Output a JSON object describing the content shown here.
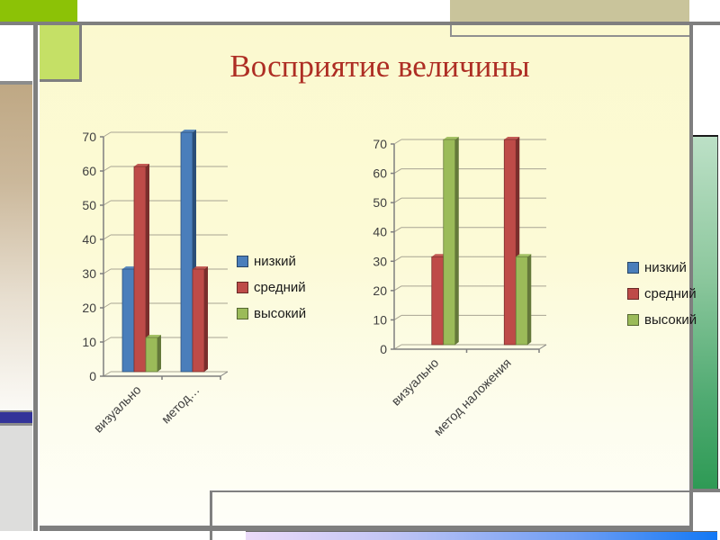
{
  "slide": {
    "title": "Восприятие величины"
  },
  "theme": {
    "title_color": "#AE2E24",
    "slide_bg": "#FBF9CF",
    "accent_green": "#8CC206",
    "accent_light_green": "#C5E066",
    "accent_tan": "#C9C49B",
    "accent_navy": "#333399",
    "frame_gray": "#7F7F7F",
    "right_green_gradient": [
      "#BCE0C6",
      "#2E9A55"
    ],
    "bottom_bar_gradient": [
      "#EBDAF9",
      "#1278F5"
    ]
  },
  "chart_data": [
    {
      "type": "bar",
      "title": "",
      "xlabel": "",
      "ylabel": "",
      "categories": [
        "визуально",
        "метод…"
      ],
      "series": [
        {
          "name": "низкий",
          "color": "#4A7EBB",
          "dark": "#2B4E78",
          "values": [
            30,
            70
          ]
        },
        {
          "name": "средний",
          "color": "#BE4B48",
          "dark": "#7A2E2C",
          "values": [
            60,
            30
          ]
        },
        {
          "name": "высокий",
          "color": "#9BBB59",
          "dark": "#64793A",
          "values": [
            10,
            0
          ]
        }
      ],
      "ylim": [
        0,
        70
      ],
      "yticks": [
        0,
        10,
        20,
        30,
        40,
        50,
        60,
        70
      ],
      "grid": true,
      "legend_position": "right"
    },
    {
      "type": "bar",
      "title": "",
      "xlabel": "",
      "ylabel": "",
      "categories": [
        "визуально",
        "метод наложения"
      ],
      "series": [
        {
          "name": "низкий",
          "color": "#4A7EBB",
          "dark": "#2B4E78",
          "values": [
            0,
            0
          ]
        },
        {
          "name": "средний",
          "color": "#BE4B48",
          "dark": "#7A2E2C",
          "values": [
            30,
            70
          ]
        },
        {
          "name": "высокий",
          "color": "#9BBB59",
          "dark": "#64793A",
          "values": [
            70,
            30
          ]
        }
      ],
      "ylim": [
        0,
        70
      ],
      "yticks": [
        0,
        10,
        20,
        30,
        40,
        50,
        60,
        70
      ],
      "grid": true,
      "legend_position": "right"
    }
  ]
}
